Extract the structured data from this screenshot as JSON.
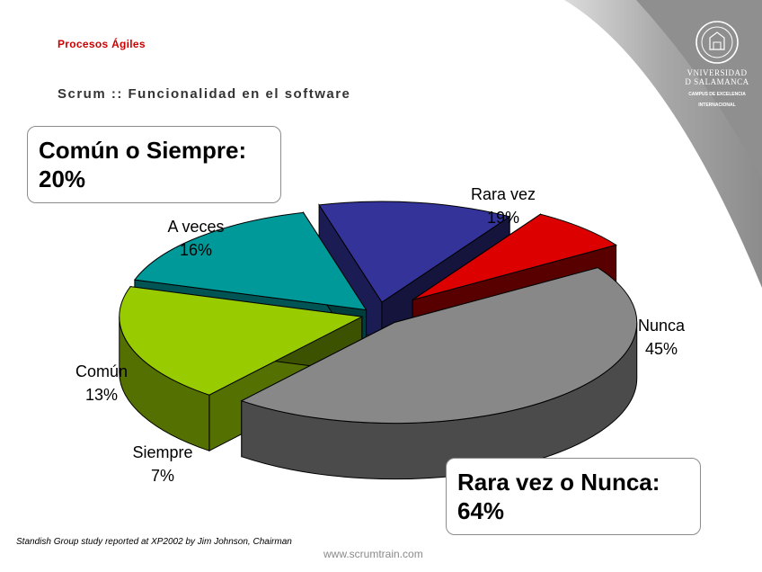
{
  "header": {
    "kicker": "Procesos Ágiles",
    "subtitle": "Scrum :: Funcionalidad en el software"
  },
  "logo": {
    "text_line1": "VNIVERSIDAD",
    "text_line2": "D SALAMANCA",
    "campus_line1": "CAMPUS DE EXCELENCIA",
    "campus_line2": "INTERNACIONAL"
  },
  "callouts": {
    "left": {
      "line1": "Común o Siempre:",
      "line2": "20%"
    },
    "right": {
      "line1": "Rara vez o Nunca:",
      "line2": "64%"
    }
  },
  "chart_data": {
    "type": "pie",
    "title": "",
    "slices": [
      {
        "label": "Nunca",
        "value": 45,
        "value_label": "45%",
        "color": "#888888"
      },
      {
        "label": "Rara vez",
        "value": 19,
        "value_label": "19%",
        "color": "#99cc00"
      },
      {
        "label": "A veces",
        "value": 16,
        "value_label": "16%",
        "color": "#009999"
      },
      {
        "label": "Común",
        "value": 13,
        "value_label": "13%",
        "color": "#333399"
      },
      {
        "label": "Siempre",
        "value": 7,
        "value_label": "7%",
        "color": "#dd0000"
      }
    ]
  },
  "footer": {
    "source": "Standish Group study reported at XP2002 by Jim Johnson, Chairman",
    "url": "www.scrumtrain.com"
  }
}
